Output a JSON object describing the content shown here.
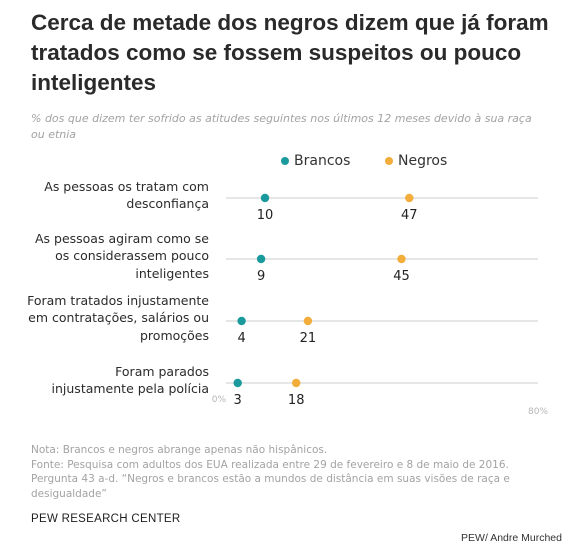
{
  "header": {
    "title": "Cerca de metade dos negros dizem que já foram tratados como se fossem suspeitos ou pouco inteligentes",
    "subtitle": "% dos que dizem ter sofrido as atitudes seguintes nos últimos 12 meses devido à sua raça ou etnia"
  },
  "legend": {
    "brancos": "Brancos",
    "negros": "Negros"
  },
  "colors": {
    "brancos": "#1a9a9c",
    "negros": "#f2ad3a",
    "rule": "#d6d6d6"
  },
  "chart_data": {
    "type": "dot",
    "title": "Cerca de metade dos negros dizem que já foram tratados como se fossem suspeitos ou pouco inteligentes",
    "subtitle": "% dos que dizem ter sofrido as atitudes seguintes nos últimos 12 meses devido à sua raça ou etnia",
    "categories": [
      [
        "As pessoas os tratam com",
        "desconfiança"
      ],
      [
        "As pessoas agiram como se",
        "os considerassem pouco",
        "inteligentes"
      ],
      [
        "Foram tratados injustamente",
        "em contratações, salários ou",
        "promoções"
      ],
      [
        "Foram parados",
        "injustamente pela polícia"
      ]
    ],
    "series": [
      {
        "name": "Brancos",
        "values": [
          10,
          9,
          4,
          3
        ]
      },
      {
        "name": "Negros",
        "values": [
          47,
          45,
          21,
          18
        ]
      }
    ],
    "xlim": [
      0,
      80
    ],
    "xtick_labels": [
      "0%",
      "80%"
    ],
    "grid": false,
    "legend_position": "top"
  },
  "footer": {
    "note_lines": [
      "Nota: Brancos e negros abrange apenas não hispânicos.",
      "Fonte: Pesquisa com adultos dos EUA realizada entre 29 de fevereiro e 8 de maio de 2016.",
      "Pergunta 43 a-d. “Negros e brancos estão a mundos de distância em suas visões de raça e",
      "desigualdade”"
    ],
    "brand": "PEW RESEARCH CENTER",
    "credit": "PEW/ Andre Murched"
  }
}
